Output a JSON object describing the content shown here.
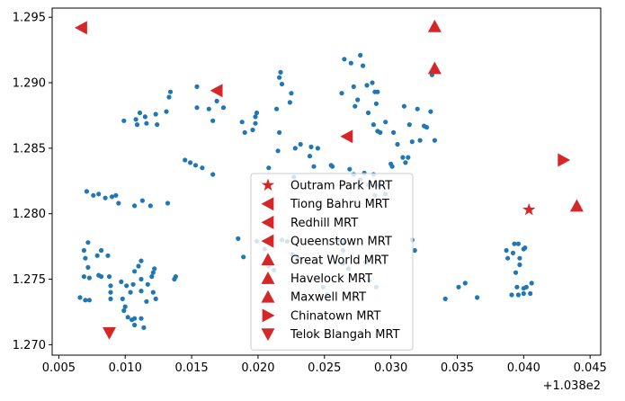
{
  "chart_data": {
    "type": "scatter",
    "title": "",
    "xlabel": "",
    "ylabel": "",
    "x_offset_text": "+1.038e2",
    "xlim": [
      0.0045,
      0.0458
    ],
    "ylim": [
      1.2692,
      1.2957
    ],
    "x_ticks": [
      0.005,
      0.01,
      0.015,
      0.02,
      0.025,
      0.03,
      0.035,
      0.04,
      0.045
    ],
    "x_tick_labels": [
      "0.005",
      "0.010",
      "0.015",
      "0.020",
      "0.025",
      "0.030",
      "0.035",
      "0.040",
      "0.045"
    ],
    "y_ticks": [
      1.27,
      1.275,
      1.28,
      1.285,
      1.29,
      1.295
    ],
    "y_tick_labels": [
      "1.270",
      "1.275",
      "1.280",
      "1.285",
      "1.290",
      "1.295"
    ],
    "grid": false,
    "legend_position": "bottom-center",
    "point_color": "#1f77b4",
    "marker_color": "#d62728",
    "points": [
      [
        0.0071,
        1.2817
      ],
      [
        0.0076,
        1.2814
      ],
      [
        0.008,
        1.2815
      ],
      [
        0.0085,
        1.2812
      ],
      [
        0.009,
        1.2813
      ],
      [
        0.0093,
        1.2814
      ],
      [
        0.0095,
        1.2808
      ],
      [
        0.0107,
        1.2806
      ],
      [
        0.0113,
        1.281
      ],
      [
        0.0119,
        1.2806
      ],
      [
        0.0132,
        1.2808
      ],
      [
        0.0099,
        1.2871
      ],
      [
        0.0108,
        1.2872
      ],
      [
        0.0109,
        1.2868
      ],
      [
        0.0111,
        1.2877
      ],
      [
        0.0115,
        1.2874
      ],
      [
        0.0116,
        1.2869
      ],
      [
        0.0123,
        1.2876
      ],
      [
        0.0124,
        1.2868
      ],
      [
        0.0131,
        1.2878
      ],
      [
        0.0133,
        1.2889
      ],
      [
        0.0134,
        1.2893
      ],
      [
        0.0154,
        1.2897
      ],
      [
        0.0154,
        1.2881
      ],
      [
        0.0163,
        1.288
      ],
      [
        0.0166,
        1.2871
      ],
      [
        0.0169,
        1.2886
      ],
      [
        0.0174,
        1.2881
      ],
      [
        0.019,
        1.2862
      ],
      [
        0.0188,
        1.287
      ],
      [
        0.0198,
        1.2874
      ],
      [
        0.0199,
        1.2877
      ],
      [
        0.0198,
        1.2869
      ],
      [
        0.0196,
        1.2864
      ],
      [
        0.0145,
        1.2841
      ],
      [
        0.0149,
        1.2839
      ],
      [
        0.0153,
        1.2837
      ],
      [
        0.0158,
        1.2835
      ],
      [
        0.0166,
        1.283
      ],
      [
        0.0214,
        1.288
      ],
      [
        0.0216,
        1.2904
      ],
      [
        0.0217,
        1.2908
      ],
      [
        0.0218,
        1.2899
      ],
      [
        0.0225,
        1.2892
      ],
      [
        0.0224,
        1.2885
      ],
      [
        0.0216,
        1.2862
      ],
      [
        0.0215,
        1.2848
      ],
      [
        0.0208,
        1.2835
      ],
      [
        0.0228,
        1.285
      ],
      [
        0.0232,
        1.2853
      ],
      [
        0.024,
        1.2851
      ],
      [
        0.0245,
        1.285
      ],
      [
        0.0239,
        1.2844
      ],
      [
        0.0242,
        1.2836
      ],
      [
        0.0256,
        1.2836
      ],
      [
        0.0227,
        1.2828
      ],
      [
        0.0263,
        1.2892
      ],
      [
        0.0265,
        1.2918
      ],
      [
        0.027,
        1.2915
      ],
      [
        0.0272,
        1.2897
      ],
      [
        0.0273,
        1.2882
      ],
      [
        0.0275,
        1.2887
      ],
      [
        0.0277,
        1.2921
      ],
      [
        0.0279,
        1.2913
      ],
      [
        0.0282,
        1.2898
      ],
      [
        0.0283,
        1.2877
      ],
      [
        0.0286,
        1.29
      ],
      [
        0.0288,
        1.2893
      ],
      [
        0.0289,
        1.2884
      ],
      [
        0.029,
        1.2893
      ],
      [
        0.0287,
        1.2868
      ],
      [
        0.029,
        1.2863
      ],
      [
        0.0292,
        1.2862
      ],
      [
        0.0296,
        1.287
      ],
      [
        0.0302,
        1.2862
      ],
      [
        0.031,
        1.2882
      ],
      [
        0.0314,
        1.2868
      ],
      [
        0.0316,
        1.2855
      ],
      [
        0.032,
        1.288
      ],
      [
        0.0322,
        1.2856
      ],
      [
        0.0325,
        1.2867
      ],
      [
        0.0327,
        1.2866
      ],
      [
        0.033,
        1.2878
      ],
      [
        0.0331,
        1.2906
      ],
      [
        0.0333,
        1.2856
      ],
      [
        0.0305,
        1.2853
      ],
      [
        0.0309,
        1.2843
      ],
      [
        0.0311,
        1.2839
      ],
      [
        0.0313,
        1.2843
      ],
      [
        0.03,
        1.2838
      ],
      [
        0.0301,
        1.2836
      ],
      [
        0.0269,
        1.2834
      ],
      [
        0.0272,
        1.283
      ],
      [
        0.0277,
        1.2826
      ],
      [
        0.028,
        1.2831
      ],
      [
        0.0283,
        1.2822
      ],
      [
        0.0287,
        1.283
      ],
      [
        0.0291,
        1.2822
      ],
      [
        0.0288,
        1.2814
      ],
      [
        0.0296,
        1.2815
      ],
      [
        0.0316,
        1.278
      ],
      [
        0.0318,
        1.2772
      ],
      [
        0.0185,
        1.2781
      ],
      [
        0.0199,
        1.2779
      ],
      [
        0.0218,
        1.278
      ],
      [
        0.0222,
        1.2779
      ],
      [
        0.0226,
        1.2769
      ],
      [
        0.023,
        1.2766
      ],
      [
        0.0205,
        1.2773
      ],
      [
        0.0208,
        1.276
      ],
      [
        0.0212,
        1.2757
      ],
      [
        0.0249,
        1.2744
      ],
      [
        0.0252,
        1.2738
      ],
      [
        0.0264,
        1.2762
      ],
      [
        0.0268,
        1.2758
      ],
      [
        0.0284,
        1.2749
      ],
      [
        0.0289,
        1.2744
      ],
      [
        0.0281,
        1.2763
      ],
      [
        0.0189,
        1.2767
      ],
      [
        0.0072,
        1.2778
      ],
      [
        0.0069,
        1.2772
      ],
      [
        0.007,
        1.2766
      ],
      [
        0.0072,
        1.2759
      ],
      [
        0.0079,
        1.2768
      ],
      [
        0.0082,
        1.2772
      ],
      [
        0.0087,
        1.2768
      ],
      [
        0.0069,
        1.2752
      ],
      [
        0.0073,
        1.2751
      ],
      [
        0.008,
        1.2753
      ],
      [
        0.0082,
        1.2752
      ],
      [
        0.0088,
        1.2752
      ],
      [
        0.0089,
        1.2745
      ],
      [
        0.0089,
        1.274
      ],
      [
        0.0089,
        1.2735
      ],
      [
        0.0097,
        1.2748
      ],
      [
        0.0101,
        1.2745
      ],
      [
        0.0098,
        1.2735
      ],
      [
        0.0104,
        1.274
      ],
      [
        0.0106,
        1.2746
      ],
      [
        0.0107,
        1.2756
      ],
      [
        0.011,
        1.276
      ],
      [
        0.0112,
        1.2764
      ],
      [
        0.0112,
        1.275
      ],
      [
        0.0112,
        1.2741
      ],
      [
        0.0116,
        1.2733
      ],
      [
        0.0117,
        1.2746
      ],
      [
        0.012,
        1.2752
      ],
      [
        0.0121,
        1.2755
      ],
      [
        0.0122,
        1.2758
      ],
      [
        0.0121,
        1.274
      ],
      [
        0.0123,
        1.2735
      ],
      [
        0.0137,
        1.275
      ],
      [
        0.0138,
        1.2752
      ],
      [
        0.0066,
        1.2736
      ],
      [
        0.007,
        1.2734
      ],
      [
        0.0073,
        1.2734
      ],
      [
        0.0099,
        1.2726
      ],
      [
        0.0102,
        1.2721
      ],
      [
        0.0105,
        1.2719
      ],
      [
        0.0107,
        1.272
      ],
      [
        0.0107,
        1.2715
      ],
      [
        0.0114,
        1.2713
      ],
      [
        0.0112,
        1.272
      ],
      [
        0.01,
        1.2729
      ],
      [
        0.0341,
        1.2735
      ],
      [
        0.0351,
        1.2744
      ],
      [
        0.0356,
        1.2747
      ],
      [
        0.0365,
        1.2736
      ],
      [
        0.0387,
        1.2772
      ],
      [
        0.0388,
        1.2766
      ],
      [
        0.0392,
        1.277
      ],
      [
        0.0393,
        1.2777
      ],
      [
        0.0396,
        1.2777
      ],
      [
        0.0397,
        1.2766
      ],
      [
        0.04,
        1.2773
      ],
      [
        0.0401,
        1.2774
      ],
      [
        0.0397,
        1.2761
      ],
      [
        0.0394,
        1.2755
      ],
      [
        0.0395,
        1.2744
      ],
      [
        0.0391,
        1.2738
      ],
      [
        0.0396,
        1.2738
      ],
      [
        0.04,
        1.2739
      ],
      [
        0.04,
        1.2743
      ],
      [
        0.0402,
        1.2744
      ],
      [
        0.0405,
        1.2739
      ],
      [
        0.0406,
        1.2747
      ],
      [
        0.0255,
        1.2837
      ],
      [
        0.0265,
        1.2778
      ],
      [
        0.0264,
        1.2772
      ],
      [
        0.026,
        1.278
      ]
    ],
    "series": [
      {
        "name": "Outram Park MRT",
        "marker": "star",
        "points": [
          [
            0.0404,
            1.2803
          ]
        ]
      },
      {
        "name": "Tiong Bahru MRT",
        "marker": "triangle-left",
        "points": [
          [
            0.0169,
            1.2894
          ]
        ]
      },
      {
        "name": "Redhill MRT",
        "marker": "triangle-left",
        "points": [
          [
            0.0067,
            1.2942
          ]
        ]
      },
      {
        "name": "Queenstown MRT",
        "marker": "triangle-left",
        "points": [
          [
            0.0267,
            1.2859
          ]
        ]
      },
      {
        "name": "Great World MRT",
        "marker": "triangle-up",
        "points": [
          [
            0.0333,
            1.2943
          ]
        ]
      },
      {
        "name": "Havelock MRT",
        "marker": "triangle-up",
        "points": [
          [
            0.0333,
            1.2911
          ]
        ]
      },
      {
        "name": "Maxwell MRT",
        "marker": "triangle-up",
        "points": [
          [
            0.044,
            1.2806
          ]
        ]
      },
      {
        "name": "Chinatown MRT",
        "marker": "triangle-right",
        "points": [
          [
            0.043,
            1.2841
          ]
        ]
      },
      {
        "name": "Telok Blangah MRT",
        "marker": "triangle-down",
        "points": [
          [
            0.0088,
            1.2709
          ]
        ]
      }
    ]
  }
}
